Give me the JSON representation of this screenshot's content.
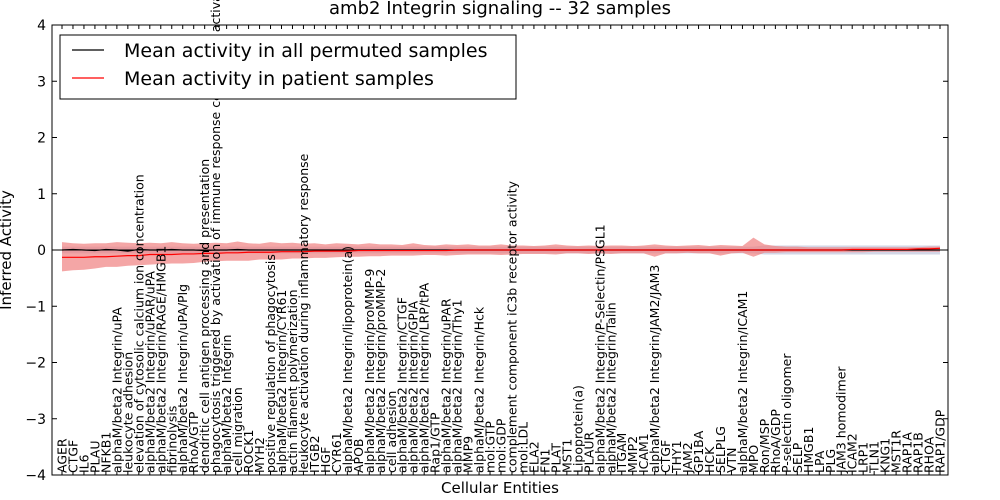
{
  "chart_data": {
    "type": "line",
    "title": "amb2 Integrin signaling -- 32 samples",
    "xlabel": "Cellular Entities",
    "ylabel": "Inferred Activity",
    "ylim": [
      -4,
      4
    ],
    "yticks": [
      -4,
      -3,
      -2,
      -1,
      0,
      1,
      2,
      3,
      4
    ],
    "ytick_labels": [
      "−4",
      "−3",
      "−2",
      "−1",
      "0",
      "1",
      "2",
      "3",
      "4"
    ],
    "grid": false,
    "legend_position": "top-left",
    "colors": {
      "permuted": "#000000",
      "patient": "#ff0000",
      "patient_band": "#f08080",
      "permuted_band": "#c8cce0",
      "zero_line": "#000000"
    },
    "categories": [
      "AGER",
      "CTGF",
      "IL6",
      "PLAU",
      "NFKB1",
      "alphaM/beta2 Integrin/uPA",
      "leukocyte adhesion",
      "elevation of cytosolic calcium ion concentration",
      "alphaM/beta2 Integrin/uPAR/uPA",
      "alphaM/beta2 Integrin/RAGE/HMGB1",
      "fibrinolysis",
      "alphaM/beta2 Integrin/uPA/Plg",
      "RhoA/GTP",
      "dendritic cell antigen processing and presentation",
      "phagocytosis triggered by activation of immune response cell surface activating receptor",
      "alphaM/beta2 Integrin",
      "cell migration",
      "ROCK1",
      "MYH2",
      "positive regulation of phagocytosis",
      "alphaM/beta2 Integrin/CYR61",
      "actin filament polymerization",
      "leukocyte activation during inflammatory response",
      "ITGB2",
      "HGF",
      "CYR61",
      "alphaM/beta2 Integrin/lipoprotein(a)",
      "APOB",
      "alphaM/beta2 Integrin/proMMP-9",
      "alphaM/beta2 Integrin/proMMP-2",
      "cell adhesion",
      "alphaM/beta2 Integrin/CTGF",
      "alphaM/beta2 Integrin/GPIA",
      "alphaM/beta2 Integrin/LRP/tPA",
      "Rap1/GTP",
      "alphaM/beta2 Integrin/uPAR",
      "alphaM/beta2 Integrin/Thy1",
      "MMP9",
      "alphaM/beta2 Integrin/Hck",
      "mol:GTP",
      "mol:GDP",
      "complement component iC3b receptor activity",
      "mol:LDL",
      "ELA2",
      "FN1",
      "PLAT",
      "MST1",
      "Lipoprotein(a)",
      "PLAUR",
      "alphaM/beta2 Integrin/P-Selectin/PSGL1",
      "alphaM/beta2 Integrin/Talin",
      "ITGAM",
      "MMP2",
      "ICAM1",
      "alphaM/beta2 Integrin/JAM2/JAM3",
      "CTGF",
      "THY1",
      "JAM2",
      "GP1BA",
      "HCK",
      "SELPLG",
      "VTN",
      "alphaM/beta2 Integrin/ICAM1",
      "MPO",
      "Ron/MSP",
      "RhoA/GDP",
      "P-selectin oligomer",
      "SELP",
      "HMGB1",
      "LPA",
      "PLG",
      "JAM3 homodimer",
      "ICAM2",
      "LRP1",
      "TLN1",
      "KNG1",
      "MST1R",
      "RAP1A",
      "RAP1B",
      "RHOA",
      "RAP1/GDP"
    ],
    "series": [
      {
        "name": "Mean activity in all permuted samples",
        "color": "#000000",
        "values": [
          0.0,
          0.01,
          0.0,
          -0.01,
          0.01,
          0.0,
          -0.02,
          0.01,
          0.0,
          0.0,
          0.01,
          0.0,
          0.0,
          -0.01,
          0.0,
          0.0,
          0.01,
          0.0,
          0.0,
          0.0,
          0.0,
          0.0,
          0.0,
          0.0,
          0.0,
          0.0,
          0.0,
          0.0,
          0.0,
          0.0,
          0.0,
          0.0,
          0.0,
          0.0,
          0.0,
          0.0,
          0.0,
          0.0,
          0.0,
          0.0,
          0.0,
          0.0,
          0.0,
          0.0,
          0.0,
          0.0,
          0.0,
          0.0,
          0.0,
          0.0,
          0.0,
          0.0,
          0.0,
          0.0,
          0.0,
          0.0,
          0.0,
          0.0,
          0.0,
          0.0,
          0.0,
          0.0,
          0.0,
          0.0,
          0.0,
          0.0,
          0.0,
          0.0,
          0.0,
          0.0,
          0.0,
          0.0,
          0.0,
          0.0,
          0.0,
          0.0,
          0.0,
          0.0,
          0.0,
          0.0,
          0.0
        ],
        "band_lower": [
          -0.06,
          -0.06,
          -0.06,
          -0.06,
          -0.06,
          -0.06,
          -0.06,
          -0.06,
          -0.06,
          -0.06,
          -0.06,
          -0.06,
          -0.06,
          -0.06,
          -0.06,
          -0.06,
          -0.06,
          -0.06,
          -0.06,
          -0.06,
          -0.06,
          -0.06,
          -0.06,
          -0.06,
          -0.06,
          -0.06,
          -0.06,
          -0.06,
          -0.06,
          -0.06,
          -0.06,
          -0.06,
          -0.06,
          -0.06,
          -0.06,
          -0.06,
          -0.06,
          -0.06,
          -0.06,
          -0.06,
          -0.06,
          -0.06,
          -0.06,
          -0.06,
          -0.06,
          -0.06,
          -0.06,
          -0.06,
          -0.06,
          -0.06,
          -0.06,
          -0.06,
          -0.06,
          -0.06,
          -0.06,
          -0.06,
          -0.06,
          -0.06,
          -0.06,
          -0.06,
          -0.06,
          -0.06,
          -0.06,
          -0.06,
          -0.08,
          -0.08,
          -0.08,
          -0.08,
          -0.08,
          -0.08,
          -0.08,
          -0.08,
          -0.08,
          -0.08,
          -0.08,
          -0.08,
          -0.08,
          -0.08,
          -0.08,
          -0.08,
          -0.08
        ],
        "band_upper": [
          0.06,
          0.06,
          0.06,
          0.06,
          0.06,
          0.06,
          0.06,
          0.06,
          0.06,
          0.06,
          0.06,
          0.06,
          0.06,
          0.06,
          0.06,
          0.06,
          0.06,
          0.06,
          0.06,
          0.06,
          0.06,
          0.06,
          0.06,
          0.06,
          0.06,
          0.06,
          0.06,
          0.06,
          0.06,
          0.06,
          0.06,
          0.06,
          0.06,
          0.06,
          0.06,
          0.06,
          0.06,
          0.06,
          0.06,
          0.06,
          0.06,
          0.06,
          0.06,
          0.06,
          0.06,
          0.06,
          0.06,
          0.06,
          0.06,
          0.06,
          0.06,
          0.06,
          0.06,
          0.06,
          0.06,
          0.06,
          0.06,
          0.06,
          0.06,
          0.06,
          0.06,
          0.06,
          0.06,
          0.06,
          0.08,
          0.08,
          0.08,
          0.08,
          0.08,
          0.08,
          0.08,
          0.08,
          0.08,
          0.08,
          0.08,
          0.08,
          0.08,
          0.08,
          0.08,
          0.08,
          0.08
        ]
      },
      {
        "name": "Mean activity in patient samples",
        "color": "#ff0000",
        "values": [
          -0.13,
          -0.13,
          -0.13,
          -0.12,
          -0.12,
          -0.11,
          -0.1,
          -0.1,
          -0.08,
          -0.08,
          -0.08,
          -0.07,
          -0.07,
          -0.06,
          -0.06,
          -0.05,
          -0.05,
          -0.04,
          -0.04,
          -0.04,
          -0.03,
          -0.03,
          -0.03,
          -0.02,
          -0.02,
          -0.02,
          -0.02,
          -0.01,
          -0.01,
          -0.01,
          -0.01,
          -0.01,
          -0.01,
          -0.01,
          -0.01,
          -0.01,
          0.0,
          0.0,
          0.0,
          0.0,
          0.0,
          0.0,
          0.0,
          0.0,
          0.0,
          0.0,
          0.0,
          0.0,
          0.0,
          0.0,
          0.0,
          0.0,
          0.0,
          0.0,
          0.0,
          0.0,
          0.0,
          0.0,
          0.0,
          0.0,
          0.0,
          0.0,
          0.0,
          0.0,
          0.0,
          0.0,
          0.0,
          0.0,
          0.0,
          0.0,
          0.0,
          0.0,
          0.01,
          0.01,
          0.01,
          0.01,
          0.01,
          0.01,
          0.02,
          0.02,
          0.03
        ],
        "band_lower": [
          -0.38,
          -0.36,
          -0.35,
          -0.33,
          -0.3,
          -0.3,
          -0.28,
          -0.27,
          -0.26,
          -0.25,
          -0.24,
          -0.24,
          -0.23,
          -0.21,
          -0.2,
          -0.19,
          -0.19,
          -0.19,
          -0.17,
          -0.17,
          -0.17,
          -0.15,
          -0.15,
          -0.14,
          -0.14,
          -0.13,
          -0.12,
          -0.12,
          -0.11,
          -0.11,
          -0.1,
          -0.1,
          -0.1,
          -0.09,
          -0.09,
          -0.1,
          -0.09,
          -0.08,
          -0.08,
          -0.08,
          -0.09,
          -0.08,
          -0.07,
          -0.07,
          -0.07,
          -0.08,
          -0.06,
          -0.06,
          -0.07,
          -0.06,
          -0.07,
          -0.06,
          -0.06,
          -0.06,
          -0.12,
          -0.06,
          -0.06,
          -0.05,
          -0.06,
          -0.06,
          -0.1,
          -0.06,
          -0.05,
          -0.12,
          -0.05,
          -0.05,
          -0.04,
          -0.04,
          -0.04,
          -0.04,
          -0.04,
          -0.04,
          -0.04,
          -0.04,
          -0.03,
          -0.03,
          -0.03,
          -0.03,
          -0.03,
          -0.03,
          -0.03
        ],
        "band_upper": [
          0.14,
          0.12,
          0.11,
          0.12,
          0.12,
          0.14,
          0.13,
          0.12,
          0.13,
          0.12,
          0.14,
          0.12,
          0.11,
          0.12,
          0.13,
          0.12,
          0.15,
          0.12,
          0.11,
          0.14,
          0.12,
          0.13,
          0.11,
          0.12,
          0.1,
          0.12,
          0.11,
          0.1,
          0.12,
          0.1,
          0.1,
          0.09,
          0.12,
          0.09,
          0.08,
          0.1,
          0.09,
          0.1,
          0.08,
          0.08,
          0.1,
          0.08,
          0.08,
          0.07,
          0.08,
          0.1,
          0.08,
          0.07,
          0.08,
          0.07,
          0.08,
          0.08,
          0.07,
          0.08,
          0.1,
          0.08,
          0.07,
          0.08,
          0.09,
          0.07,
          0.09,
          0.08,
          0.07,
          0.22,
          0.1,
          0.07,
          0.06,
          0.06,
          0.05,
          0.05,
          0.05,
          0.05,
          0.05,
          0.05,
          0.05,
          0.05,
          0.05,
          0.05,
          0.05,
          0.06,
          0.06
        ]
      }
    ]
  }
}
